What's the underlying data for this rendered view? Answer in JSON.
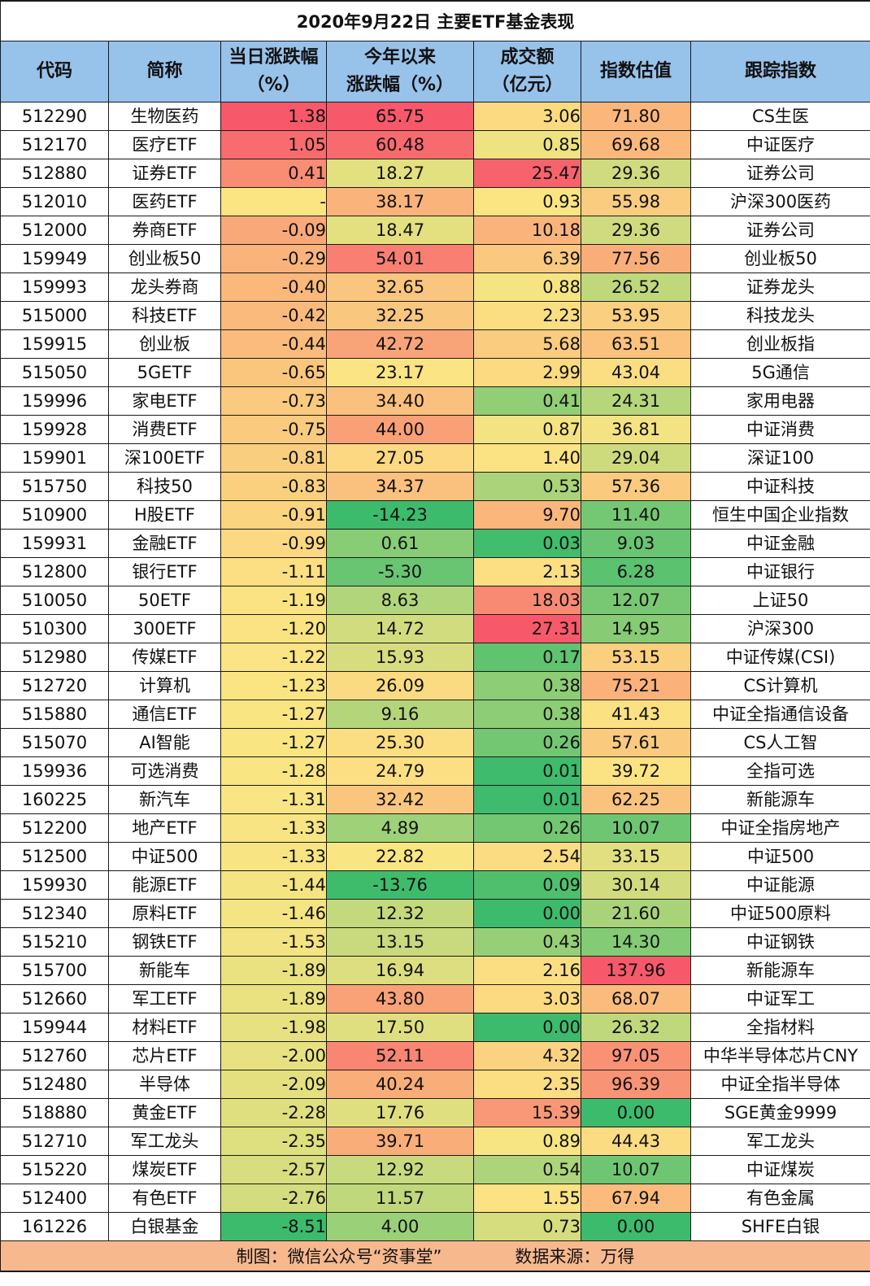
{
  "title": "2020年9月22日 主要ETF基金表现",
  "headers": [
    [
      "代码"
    ],
    [
      "简称"
    ],
    [
      "当日涨跌幅",
      "（%）"
    ],
    [
      "今年以来",
      "涨跌幅（%）"
    ],
    [
      "成交额",
      "（亿元）"
    ],
    [
      "指数估值"
    ],
    [
      "跟踪指数"
    ]
  ],
  "rows": [
    [
      "512290",
      "生物医药",
      "1.38",
      "65.75",
      "3.06",
      "71.80",
      "CS生医"
    ],
    [
      "512170",
      "医疗ETF",
      "1.05",
      "60.48",
      "0.85",
      "69.68",
      "中证医疗"
    ],
    [
      "512880",
      "证券ETF",
      "0.41",
      "18.27",
      "25.47",
      "29.36",
      "证券公司"
    ],
    [
      "512010",
      "医药ETF",
      "-",
      "38.17",
      "0.93",
      "55.98",
      "沪深300医药"
    ],
    [
      "512000",
      "券商ETF",
      "-0.09",
      "18.47",
      "10.18",
      "29.36",
      "证券公司"
    ],
    [
      "159949",
      "创业板50",
      "-0.29",
      "54.01",
      "6.39",
      "77.56",
      "创业板50"
    ],
    [
      "159993",
      "龙头券商",
      "-0.40",
      "32.65",
      "0.88",
      "26.52",
      "证券龙头"
    ],
    [
      "515000",
      "科技ETF",
      "-0.42",
      "32.25",
      "2.23",
      "53.95",
      "科技龙头"
    ],
    [
      "159915",
      "创业板",
      "-0.44",
      "42.72",
      "5.68",
      "63.51",
      "创业板指"
    ],
    [
      "515050",
      "5GETF",
      "-0.65",
      "23.17",
      "2.99",
      "43.04",
      "5G通信"
    ],
    [
      "159996",
      "家电ETF",
      "-0.73",
      "34.40",
      "0.41",
      "24.31",
      "家用电器"
    ],
    [
      "159928",
      "消费ETF",
      "-0.75",
      "44.00",
      "0.87",
      "36.81",
      "中证消费"
    ],
    [
      "159901",
      "深100ETF",
      "-0.81",
      "27.05",
      "1.40",
      "29.04",
      "深证100"
    ],
    [
      "515750",
      "科技50",
      "-0.83",
      "34.37",
      "0.53",
      "57.36",
      "中证科技"
    ],
    [
      "510900",
      "H股ETF",
      "-0.91",
      "-14.23",
      "9.70",
      "11.40",
      "恒生中国企业指数"
    ],
    [
      "159931",
      "金融ETF",
      "-0.99",
      "0.61",
      "0.03",
      "9.03",
      "中证金融"
    ],
    [
      "512800",
      "银行ETF",
      "-1.11",
      "-5.30",
      "2.13",
      "6.28",
      "中证银行"
    ],
    [
      "510050",
      "50ETF",
      "-1.19",
      "8.63",
      "18.03",
      "12.07",
      "上证50"
    ],
    [
      "510300",
      "300ETF",
      "-1.20",
      "14.72",
      "27.31",
      "14.95",
      "沪深300"
    ],
    [
      "512980",
      "传媒ETF",
      "-1.22",
      "15.93",
      "0.17",
      "53.15",
      "中证传媒(CSI)"
    ],
    [
      "512720",
      "计算机",
      "-1.23",
      "26.09",
      "0.38",
      "75.21",
      "CS计算机"
    ],
    [
      "515880",
      "通信ETF",
      "-1.27",
      "9.16",
      "0.38",
      "41.43",
      "中证全指通信设备"
    ],
    [
      "515070",
      "AI智能",
      "-1.27",
      "25.30",
      "0.26",
      "57.61",
      "CS人工智"
    ],
    [
      "159936",
      "可选消费",
      "-1.28",
      "24.79",
      "0.01",
      "39.72",
      "全指可选"
    ],
    [
      "160225",
      "新汽车",
      "-1.31",
      "32.42",
      "0.01",
      "62.25",
      "新能源车"
    ],
    [
      "512200",
      "地产ETF",
      "-1.33",
      "4.89",
      "0.26",
      "10.07",
      "中证全指房地产"
    ],
    [
      "512500",
      "中证500",
      "-1.33",
      "22.82",
      "2.54",
      "33.15",
      "中证500"
    ],
    [
      "159930",
      "能源ETF",
      "-1.44",
      "-13.76",
      "0.09",
      "30.14",
      "中证能源"
    ],
    [
      "512340",
      "原料ETF",
      "-1.46",
      "12.32",
      "0.00",
      "21.60",
      "中证500原料"
    ],
    [
      "515210",
      "钢铁ETF",
      "-1.53",
      "13.15",
      "0.43",
      "14.30",
      "中证钢铁"
    ],
    [
      "515700",
      "新能车",
      "-1.89",
      "16.94",
      "2.16",
      "137.96",
      "新能源车"
    ],
    [
      "512660",
      "军工ETF",
      "-1.89",
      "43.80",
      "3.03",
      "68.07",
      "中证军工"
    ],
    [
      "159944",
      "材料ETF",
      "-1.98",
      "17.50",
      "0.00",
      "26.32",
      "全指材料"
    ],
    [
      "512760",
      "芯片ETF",
      "-2.00",
      "52.11",
      "4.32",
      "97.05",
      "中华半导体芯片CNY"
    ],
    [
      "512480",
      "半导体",
      "-2.09",
      "40.24",
      "2.35",
      "96.39",
      "中证全指半导体"
    ],
    [
      "518880",
      "黄金ETF",
      "-2.28",
      "17.76",
      "15.39",
      "0.00",
      "SGE黄金9999"
    ],
    [
      "512710",
      "军工龙头",
      "-2.35",
      "39.71",
      "0.89",
      "44.43",
      "军工龙头"
    ],
    [
      "515220",
      "煤炭ETF",
      "-2.57",
      "12.92",
      "0.54",
      "10.07",
      "中证煤炭"
    ],
    [
      "512400",
      "有色ETF",
      "-2.76",
      "11.57",
      "1.55",
      "67.94",
      "有色金属"
    ],
    [
      "161226",
      "白银基金",
      "-8.51",
      "4.00",
      "0.73",
      "0.00",
      "SHFE白银"
    ]
  ],
  "footer": {
    "credit": "制图：微信公众号“资事堂”",
    "source": "数据来源：万得"
  },
  "colors": {
    "header_bg": "#97c2ea",
    "footer_bg": "#f7b88e",
    "scale_low": "#3cbb6c",
    "scale_mid": "#fbe583",
    "scale_high": "#f7596b"
  },
  "chart_data": {
    "type": "table",
    "title": "2020年9月22日 主要ETF基金表现",
    "columns": [
      "代码",
      "简称",
      "当日涨跌幅（%）",
      "今年以来涨跌幅（%）",
      "成交额（亿元）",
      "指数估值",
      "跟踪指数"
    ],
    "color_scaled_columns": [
      "当日涨跌幅（%）",
      "今年以来涨跌幅（%）",
      "成交额（亿元）",
      "指数估值"
    ]
  }
}
